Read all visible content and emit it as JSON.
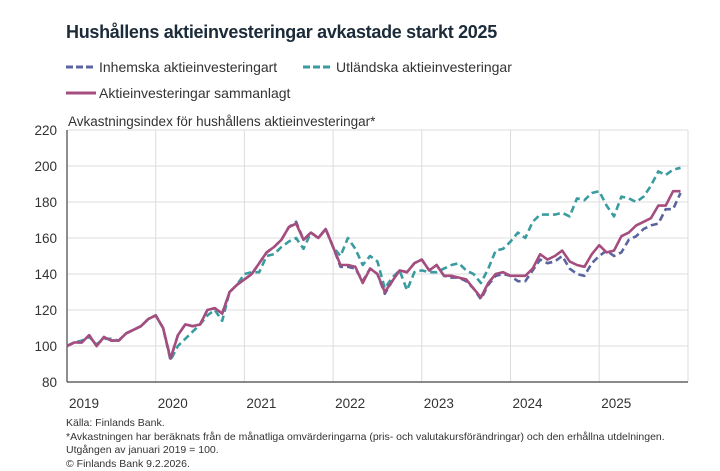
{
  "chart_data": {
    "type": "line",
    "title": "Hushållens aktieinvesteringar avkastade starkt 2025",
    "ylabel": "Avkastningsindex för hushållens aktieinvesteringar*",
    "xlabel": "",
    "ylim": [
      80,
      220
    ],
    "yticks": [
      "80",
      "100",
      "120",
      "140",
      "160",
      "180",
      "200",
      "220"
    ],
    "xticks": [
      "2019",
      "2020",
      "2021",
      "2022",
      "2023",
      "2024",
      "2025"
    ],
    "x_start": "2019-01",
    "frequency": "monthly",
    "grid": true,
    "legend": "top",
    "series": [
      {
        "name": "Inhemska aktieinvesteringart",
        "color": "#5a64a0",
        "style": "dashed",
        "values": [
          100,
          102,
          102,
          106,
          100,
          105,
          103,
          103,
          107,
          109,
          111,
          115,
          117,
          110,
          93,
          106,
          112,
          111,
          112,
          120,
          121,
          118,
          130,
          134,
          137,
          140,
          146,
          152,
          155,
          159,
          166,
          169,
          159,
          163,
          160,
          165,
          155,
          144,
          144,
          143,
          136,
          143,
          140,
          129,
          136,
          142,
          141,
          146,
          148,
          142,
          145,
          139,
          138,
          138,
          136,
          132,
          126,
          134,
          139,
          140,
          139,
          136,
          136,
          142,
          148,
          146,
          147,
          150,
          143,
          140,
          139,
          146,
          150,
          153,
          150,
          152,
          159,
          161,
          165,
          167,
          168,
          176,
          176,
          185
        ]
      },
      {
        "name": "Utländska aktieinvesteringar",
        "color": "#3a9ca0",
        "style": "dashed",
        "values": [
          100,
          102,
          103,
          105,
          101,
          104,
          104,
          103,
          107,
          109,
          111,
          115,
          117,
          110,
          92,
          100,
          104,
          108,
          112,
          117,
          120,
          114,
          130,
          134,
          140,
          141,
          141,
          150,
          151,
          155,
          158,
          160,
          154,
          163,
          160,
          165,
          155,
          150,
          160,
          154,
          145,
          150,
          147,
          132,
          138,
          142,
          131,
          141,
          142,
          141,
          141,
          143,
          145,
          146,
          142,
          140,
          135,
          143,
          153,
          154,
          158,
          163,
          160,
          169,
          173,
          173,
          173,
          174,
          172,
          182,
          181,
          185,
          186,
          178,
          172,
          183,
          182,
          180,
          183,
          189,
          197,
          195,
          198,
          199
        ]
      },
      {
        "name": "Aktieinvesteringar sammanlagt",
        "color": "#a64d7f",
        "style": "solid",
        "values": [
          100,
          102,
          102,
          106,
          100,
          105,
          103,
          103,
          107,
          109,
          111,
          115,
          117,
          110,
          93,
          106,
          112,
          111,
          112,
          120,
          121,
          118,
          130,
          134,
          137,
          140,
          146,
          152,
          155,
          159,
          166,
          168,
          159,
          163,
          160,
          165,
          155,
          145,
          145,
          144,
          135,
          143,
          140,
          130,
          136,
          142,
          141,
          146,
          148,
          142,
          145,
          139,
          139,
          138,
          137,
          132,
          127,
          135,
          140,
          141,
          139,
          139,
          139,
          143,
          151,
          148,
          150,
          153,
          147,
          145,
          144,
          151,
          156,
          152,
          153,
          161,
          163,
          167,
          169,
          171,
          178,
          178,
          186,
          186
        ]
      }
    ]
  },
  "footer": {
    "source": "Källa: Finlands Bank.",
    "note": "*Avkastningen har beräknats från de månatliga omvärderingarna (pris- och valutakursförändringar) och den erhållna utdelningen.",
    "base": "Utgången av januari 2019 = 100.",
    "copyright": "© Finlands Bank 9.2.2026."
  }
}
